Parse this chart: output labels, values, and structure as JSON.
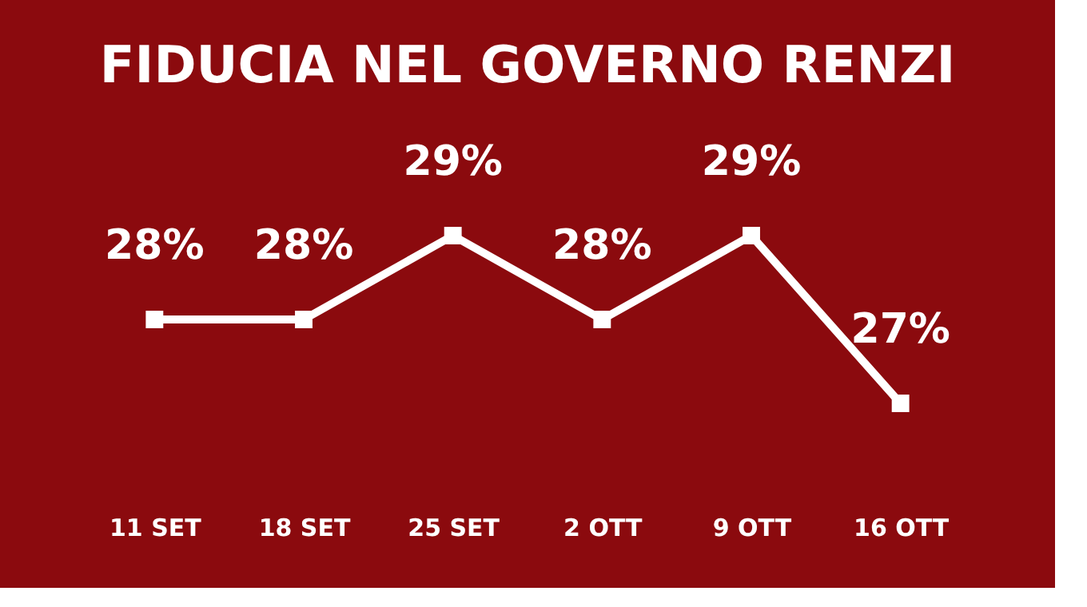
{
  "chart_data": {
    "type": "line",
    "title": "FIDUCIA NEL GOVERNO RENZI",
    "categories": [
      "11 SET",
      "18 SET",
      "25 SET",
      "2 OTT",
      "9 OTT",
      "16 OTT"
    ],
    "series": [
      {
        "color": "#ffffff",
        "values": [
          28,
          28,
          29,
          28,
          29,
          27
        ],
        "value_labels": [
          "28%",
          "28%",
          "29%",
          "28%",
          "29%",
          "27%"
        ]
      }
    ],
    "marker": "square",
    "grid": false,
    "tick_labels": "x"
  }
}
